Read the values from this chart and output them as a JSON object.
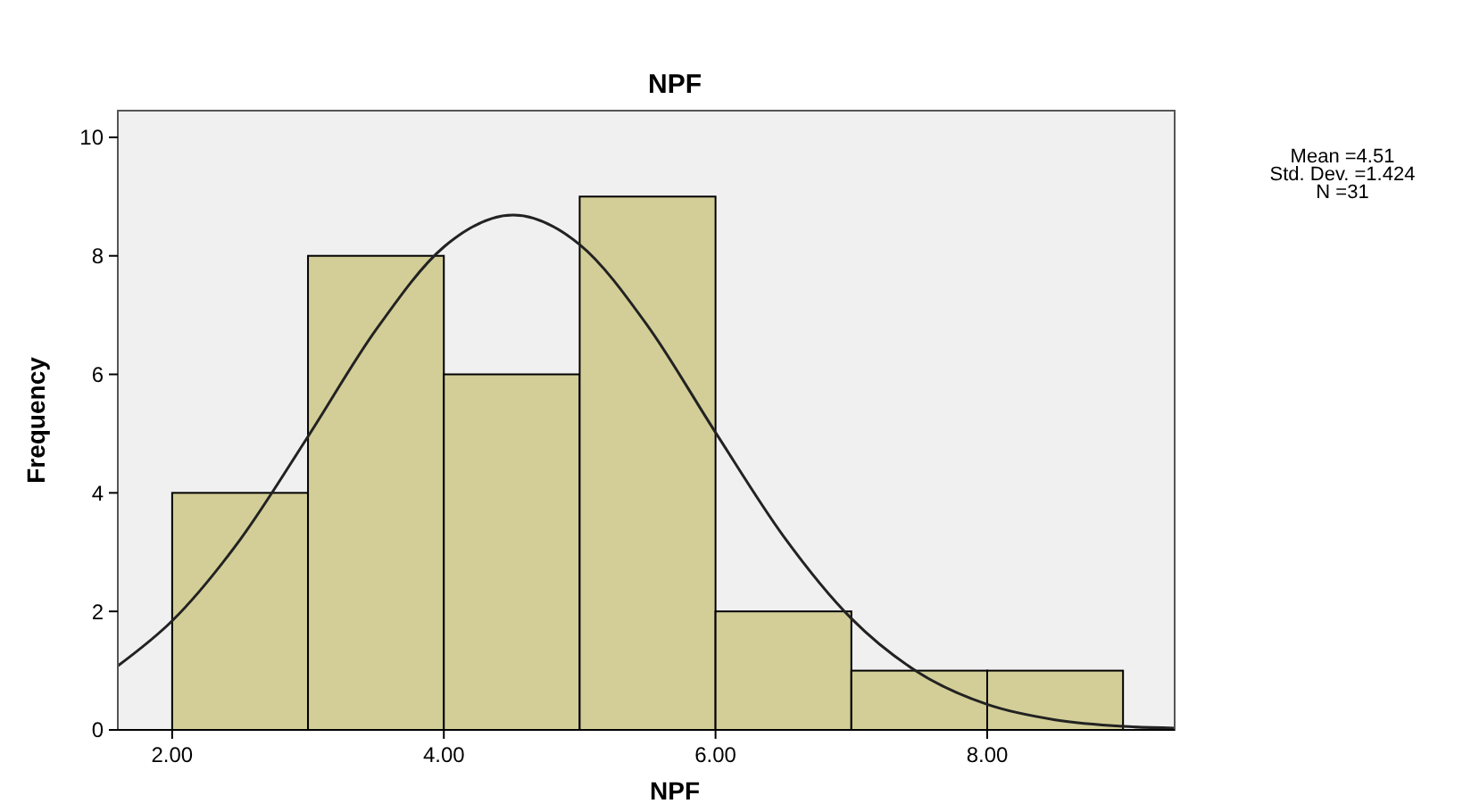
{
  "chart_data": {
    "type": "histogram",
    "title": "NPF",
    "xlabel": "NPF",
    "ylabel": "Frequency",
    "bins": [
      2,
      3,
      4,
      5,
      6,
      7,
      8,
      9
    ],
    "values": [
      4,
      8,
      6,
      9,
      2,
      1,
      1
    ],
    "color": "#d3ce97",
    "series": [
      {
        "type": "line",
        "color": "#222222",
        "x": [
          1.6,
          2,
          2.5,
          3,
          3.5,
          4,
          4.51,
          5,
          5.5,
          6,
          6.5,
          7,
          7.5,
          8,
          8.5,
          9,
          9.38
        ],
        "values": [
          1.08,
          1.84,
          3.21,
          4.95,
          6.75,
          8.15,
          8.69,
          8.19,
          6.82,
          5.02,
          3.27,
          1.88,
          0.96,
          0.43,
          0.17,
          0.06,
          0.03
        ]
      }
    ],
    "xlim": [
      1.6,
      9.38
    ],
    "xticks": [
      {
        "value": 2,
        "label": "2.00"
      },
      {
        "value": 4,
        "label": "4.00"
      },
      {
        "value": 6,
        "label": "6.00"
      },
      {
        "value": 8,
        "label": "8.00"
      }
    ],
    "ylim": [
      0,
      10.45
    ],
    "yticks": [
      0,
      2,
      4,
      6,
      8,
      10
    ],
    "annotations": [
      "Mean =4.51",
      "Std. Dev. =1.424",
      "N =31"
    ],
    "grid": false
  }
}
